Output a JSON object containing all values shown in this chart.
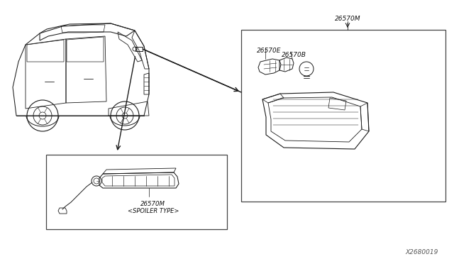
{
  "bg_color": "#ffffff",
  "line_color": "#1a1a1a",
  "box_line_color": "#444444",
  "text_color": "#111111",
  "fig_width": 6.4,
  "fig_height": 3.72,
  "dpi": 100,
  "part_number_main": "26570M",
  "part_number_E": "26570E",
  "part_number_B": "26570B",
  "part_number_spoiler": "26570M",
  "spoiler_type_label": "<SPOILER TYPE>",
  "diagram_id": "X2680019"
}
